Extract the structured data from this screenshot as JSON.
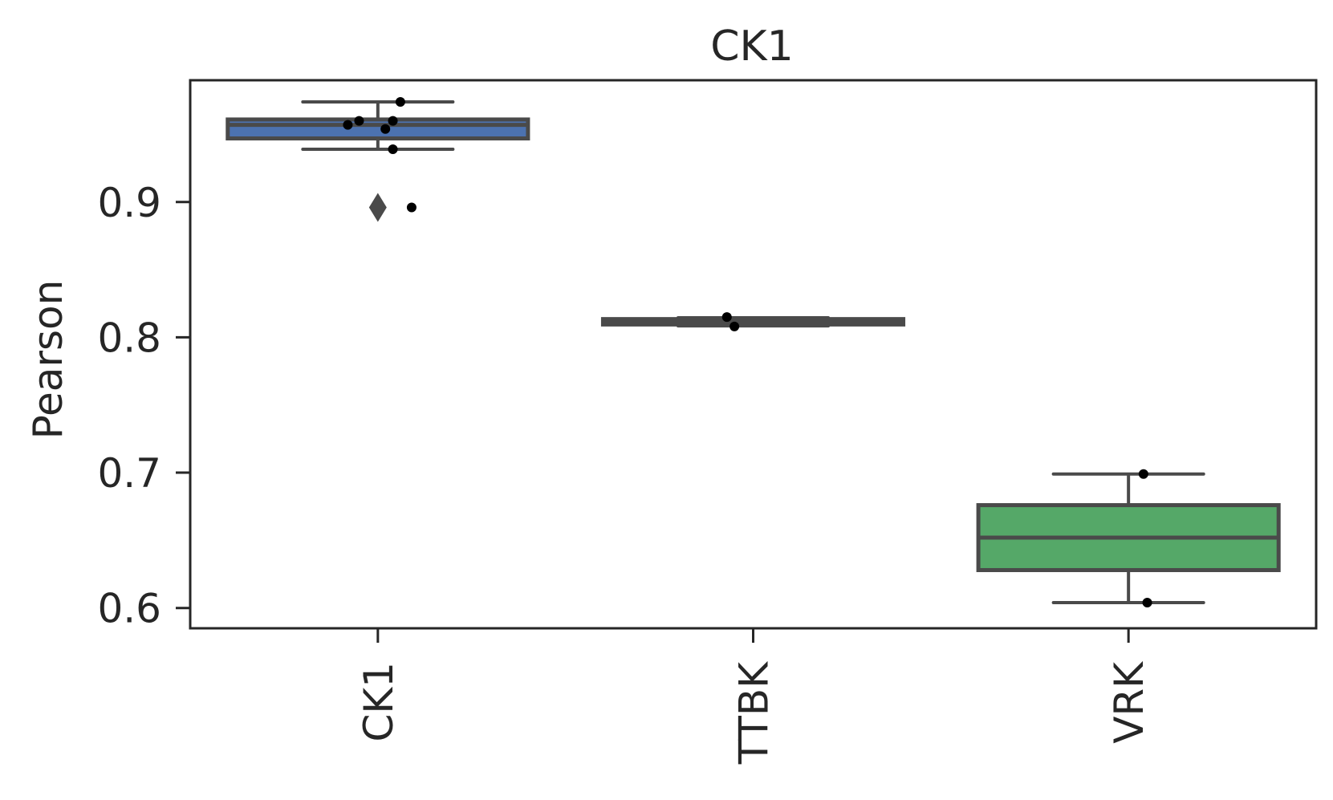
{
  "chart_data": {
    "type": "box",
    "title": "CK1",
    "xlabel": "",
    "ylabel": "Pearson",
    "categories": [
      "CK1",
      "TTBK",
      "VRK"
    ],
    "ylim": [
      0.585,
      0.99
    ],
    "yticks": [
      "0.6",
      "0.7",
      "0.8",
      "0.9"
    ],
    "ytick_values": [
      0.6,
      0.7,
      0.8,
      0.9
    ],
    "grid": false,
    "legend": "none",
    "boxes": [
      {
        "category": "CK1",
        "color": "#4c72b0",
        "whisker_low": 0.939,
        "q1": 0.947,
        "median": 0.957,
        "q3": 0.961,
        "whisker_high": 0.974,
        "outliers": [
          0.896
        ]
      },
      {
        "category": "TTBK",
        "color": "#4c72b0",
        "whisker_low": 0.8085,
        "q1": 0.8095,
        "median": 0.8115,
        "q3": 0.8135,
        "whisker_high": 0.8145,
        "outliers": []
      },
      {
        "category": "VRK",
        "color": "#55a868",
        "whisker_low": 0.604,
        "q1": 0.628,
        "median": 0.652,
        "q3": 0.676,
        "whisker_high": 0.699,
        "outliers": []
      }
    ],
    "points": [
      {
        "category": "CK1",
        "jitter": 0.06,
        "y": 0.974
      },
      {
        "category": "CK1",
        "jitter": -0.05,
        "y": 0.96
      },
      {
        "category": "CK1",
        "jitter": 0.04,
        "y": 0.96
      },
      {
        "category": "CK1",
        "jitter": -0.08,
        "y": 0.957
      },
      {
        "category": "CK1",
        "jitter": 0.02,
        "y": 0.954
      },
      {
        "category": "CK1",
        "jitter": 0.04,
        "y": 0.939
      },
      {
        "category": "CK1",
        "jitter": 0.09,
        "y": 0.896
      },
      {
        "category": "TTBK",
        "jitter": -0.07,
        "y": 0.815
      },
      {
        "category": "TTBK",
        "jitter": -0.05,
        "y": 0.808
      },
      {
        "category": "VRK",
        "jitter": 0.04,
        "y": 0.699
      },
      {
        "category": "VRK",
        "jitter": 0.05,
        "y": 0.604
      }
    ]
  }
}
